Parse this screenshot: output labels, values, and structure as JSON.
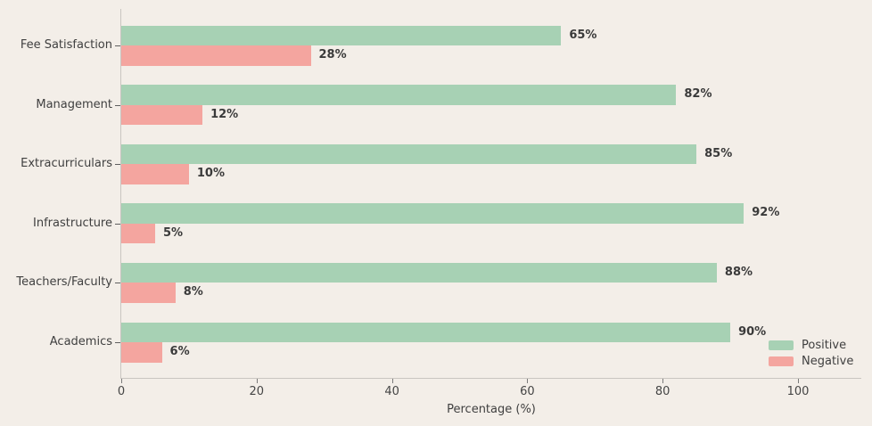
{
  "figure": {
    "background_color": "#f3eee8",
    "axis_color": "#c9c5c0",
    "text_color": "#3f3f3f"
  },
  "chart_data": {
    "type": "bar",
    "orientation": "horizontal",
    "title": "",
    "xlabel": "Percentage (%)",
    "ylabel": "",
    "categories": [
      "Fee Satisfaction",
      "Management",
      "Extracurriculars",
      "Infrastructure",
      "Teachers/Faculty",
      "Academics"
    ],
    "series": [
      {
        "name": "Positive",
        "color": "#a7d1b4",
        "values": [
          65,
          82,
          85,
          92,
          88,
          90
        ]
      },
      {
        "name": "Negative",
        "color": "#f4a59f",
        "values": [
          28,
          12,
          10,
          5,
          8,
          6
        ]
      }
    ],
    "value_label_suffix": "%",
    "x_ticks": [
      0,
      20,
      40,
      60,
      80,
      100
    ],
    "xlim": [
      0,
      109
    ],
    "grid": false,
    "legend": {
      "position": "lower right",
      "entries": [
        "Positive",
        "Negative"
      ]
    }
  }
}
